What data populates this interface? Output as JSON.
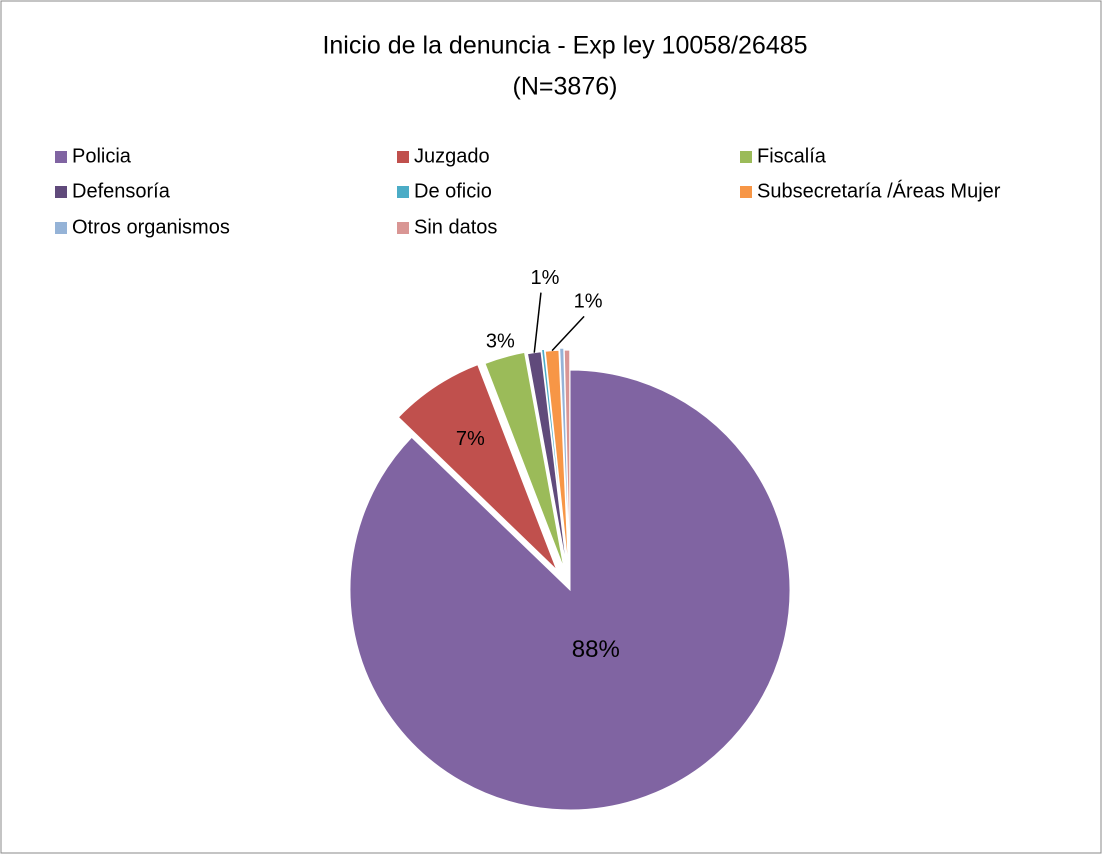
{
  "chart_data": {
    "type": "pie",
    "title": "Inicio de la denuncia - Exp ley 10058/26485",
    "subtitle": "(N=3876)",
    "categories": [
      "Policia",
      "Juzgado",
      "Fiscalía",
      "Defensoría",
      "De oficio",
      "Subsecretaría /Áreas Mujer",
      "Otros organismos",
      "Sin datos"
    ],
    "values": [
      88,
      7,
      3,
      1,
      0.2,
      1,
      0.3,
      0.4
    ],
    "value_labels": [
      "88%",
      "7%",
      "3%",
      "1%",
      null,
      "1%",
      null,
      null
    ],
    "colors": [
      "#8064a2",
      "#c0504d",
      "#9bbb59",
      "#604a7b",
      "#4bacc6",
      "#f79646",
      "#95b3d7",
      "#d99694"
    ],
    "legend": "top"
  }
}
